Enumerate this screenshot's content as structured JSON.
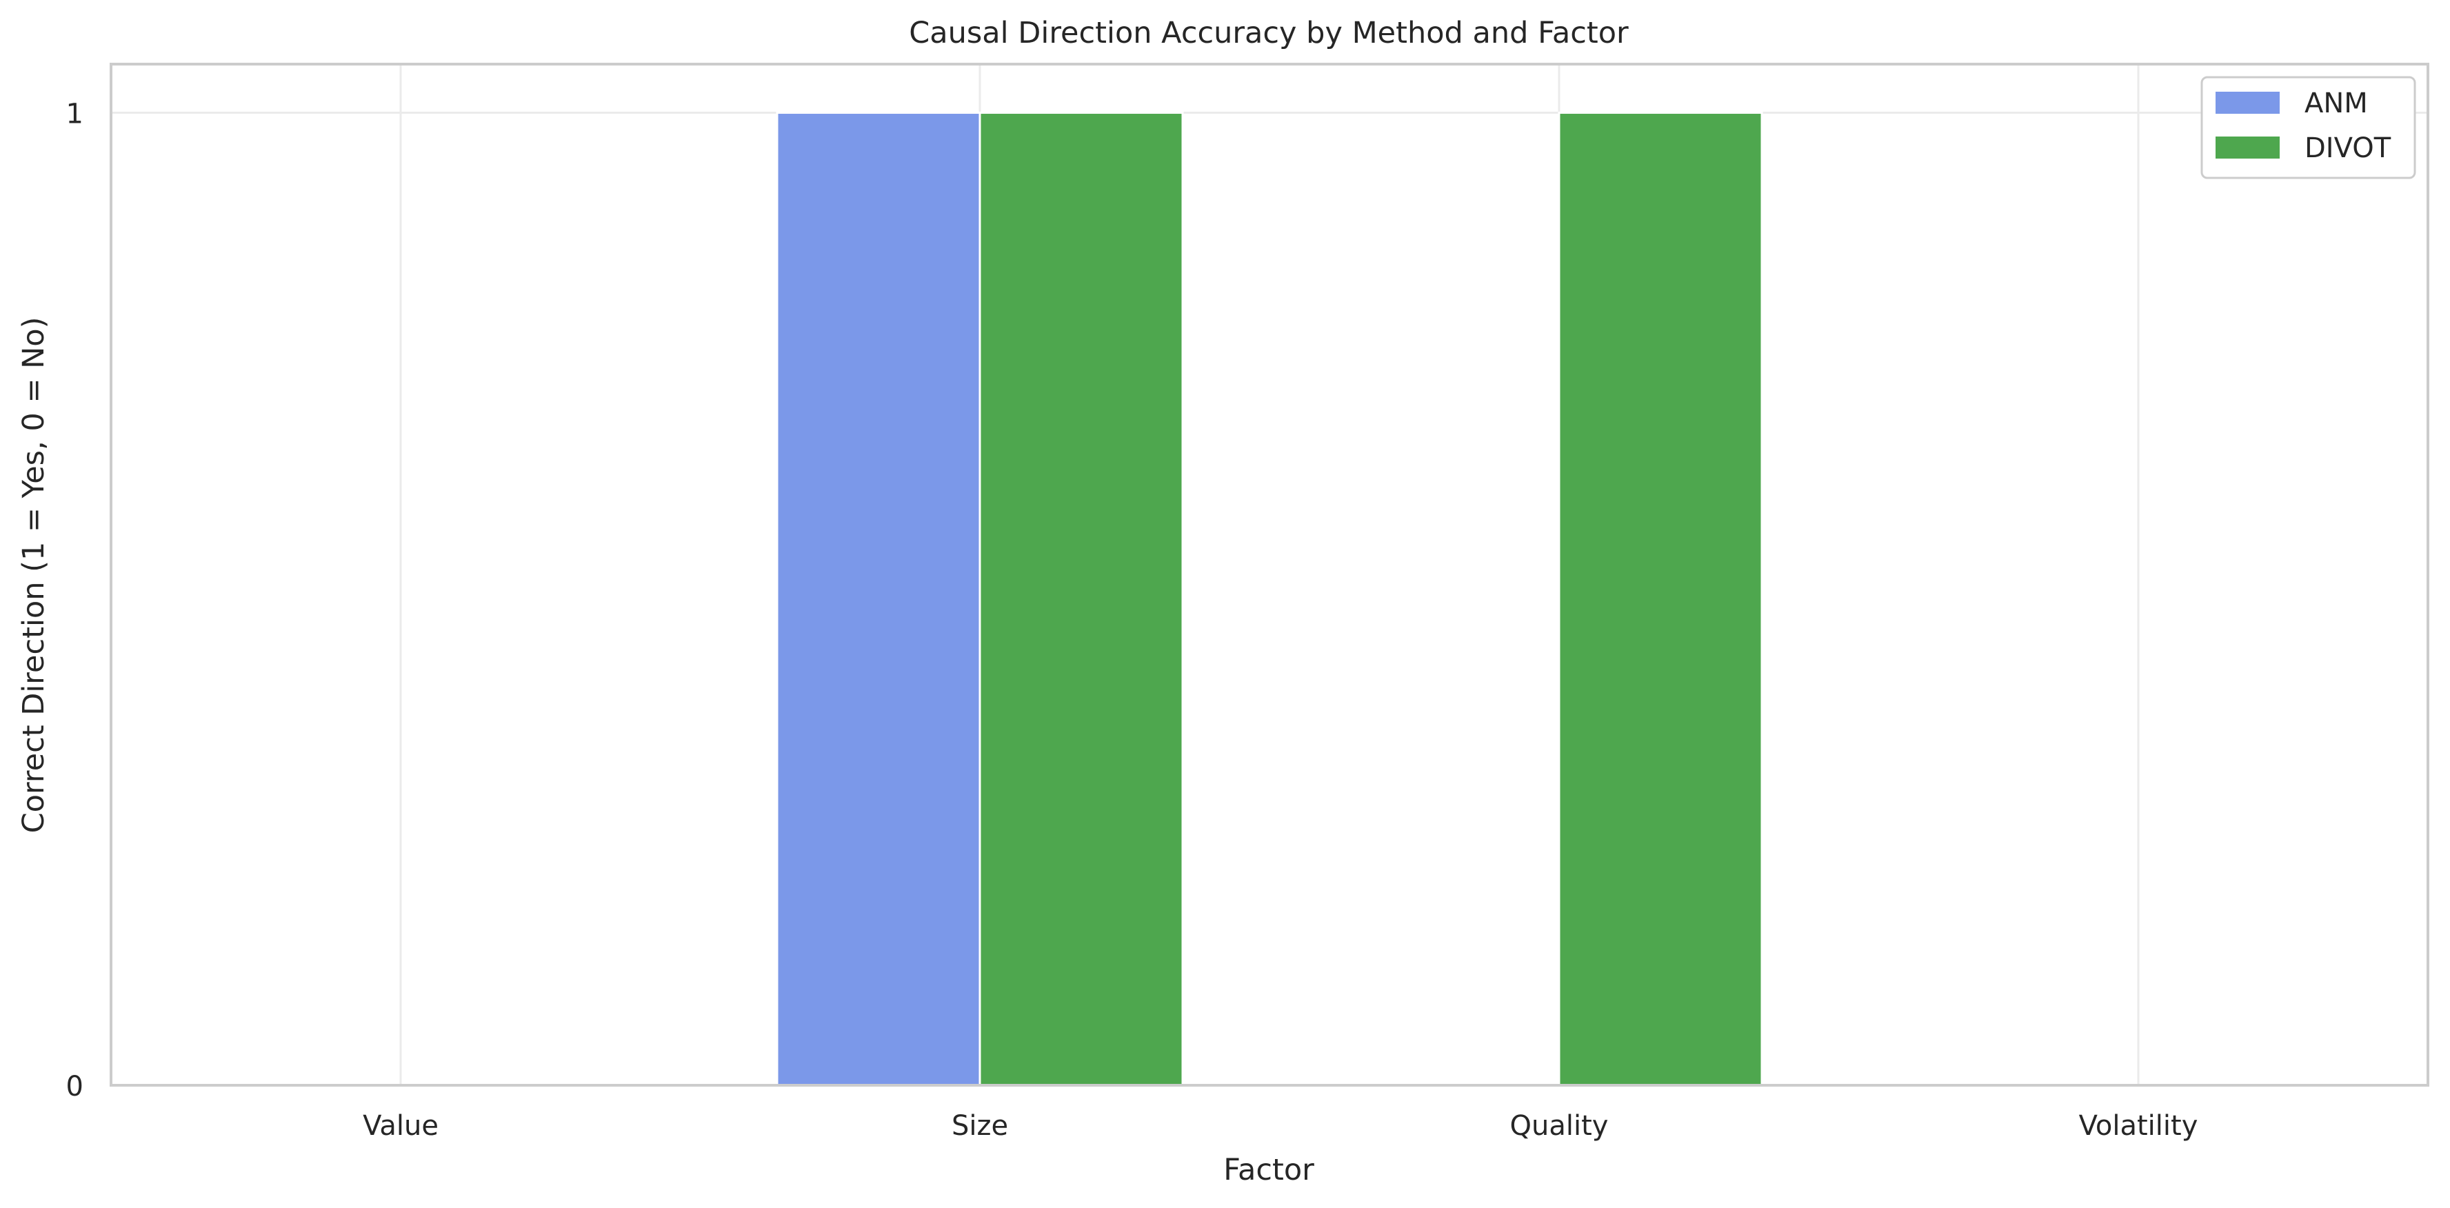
{
  "chart_data": {
    "type": "bar",
    "title": "Causal Direction Accuracy by Method and Factor",
    "xlabel": "Factor",
    "ylabel": "Correct Direction (1 = Yes, 0 = No)",
    "categories": [
      "Value",
      "Size",
      "Quality",
      "Volatility"
    ],
    "series": [
      {
        "name": "ANM",
        "values": [
          0,
          1,
          0,
          0
        ],
        "color": "#7b98e9"
      },
      {
        "name": "DIVOT",
        "values": [
          0,
          1,
          1,
          0
        ],
        "color": "#4ea74e"
      }
    ],
    "ylim": [
      0,
      1.05
    ],
    "yticks": [
      0,
      1
    ],
    "ytick_labels": [
      "0",
      "1"
    ],
    "grid": true,
    "legend_position": "top-right"
  }
}
